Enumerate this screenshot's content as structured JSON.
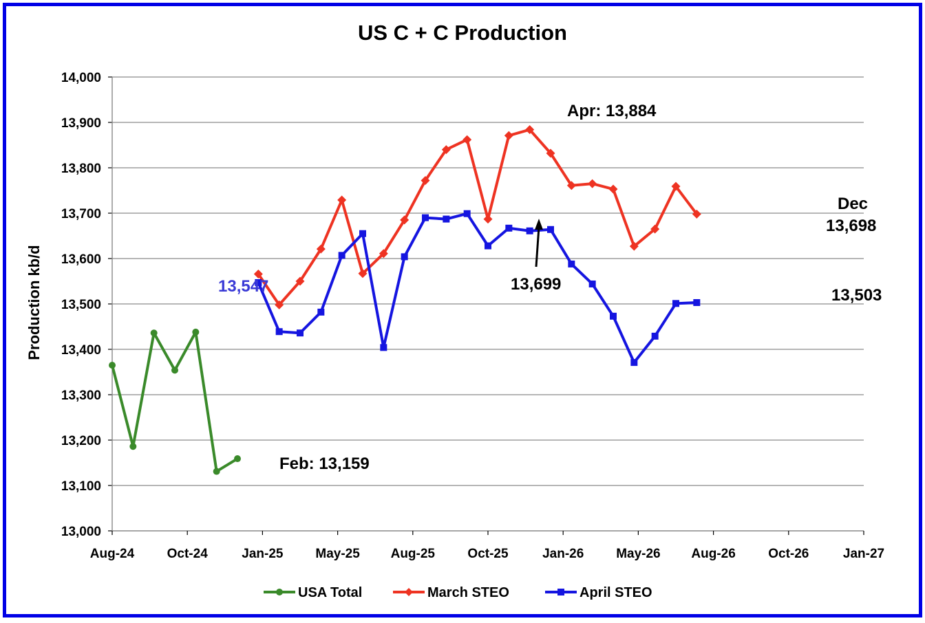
{
  "chart_data": {
    "type": "line",
    "title": "US C + C Production",
    "xlabel": "",
    "ylabel": "Production kb/d",
    "ylim": [
      13000,
      14000
    ],
    "y_ticks": [
      "13,000",
      "13,100",
      "13,200",
      "13,300",
      "13,400",
      "13,500",
      "13,600",
      "13,700",
      "13,800",
      "13,900",
      "14,000"
    ],
    "x_ticks": [
      "Aug-24",
      "Oct-24",
      "Jan-25",
      "May-25",
      "Aug-25",
      "Oct-25",
      "Jan-26",
      "May-26",
      "Aug-26",
      "Oct-26",
      "Jan-27"
    ],
    "grid": "horizontal",
    "legend_position": "bottom",
    "series": [
      {
        "name": "USA Total",
        "color": "#3a8a2a",
        "marker": "circle",
        "x": [
          "2024-08",
          "2024-09",
          "2024-10",
          "2024-11",
          "2024-12",
          "2025-01",
          "2025-02"
        ],
        "values": [
          13365,
          13186,
          13436,
          13354,
          13438,
          13131,
          13159
        ]
      },
      {
        "name": "March STEO",
        "color": "#ee3322",
        "marker": "diamond",
        "x": [
          "2025-03",
          "2025-04",
          "2025-05",
          "2025-06",
          "2025-07",
          "2025-08",
          "2025-09",
          "2025-10",
          "2025-11",
          "2025-12",
          "2026-01",
          "2026-02",
          "2026-03",
          "2026-04",
          "2026-05",
          "2026-06",
          "2026-07",
          "2026-08",
          "2026-09",
          "2026-10",
          "2026-11",
          "2026-12"
        ],
        "values": [
          13566,
          13498,
          13550,
          13621,
          13729,
          13567,
          13611,
          13685,
          13772,
          13840,
          13862,
          13687,
          13871,
          13884,
          13832,
          13761,
          13765,
          13753,
          13627,
          13665,
          13759,
          13698
        ]
      },
      {
        "name": "April STEO",
        "color": "#1515e0",
        "marker": "square",
        "x": [
          "2025-03",
          "2025-04",
          "2025-05",
          "2025-06",
          "2025-07",
          "2025-08",
          "2025-09",
          "2025-10",
          "2025-11",
          "2025-12",
          "2026-01",
          "2026-02",
          "2026-03",
          "2026-04",
          "2026-05",
          "2026-06",
          "2026-07",
          "2026-08",
          "2026-09",
          "2026-10",
          "2026-11",
          "2026-12"
        ],
        "values": [
          13547,
          13439,
          13436,
          13482,
          13607,
          13655,
          13404,
          13604,
          13690,
          13687,
          13699,
          13628,
          13667,
          13661,
          13664,
          13588,
          13544,
          13473,
          13371,
          13429,
          13501,
          13503
        ]
      }
    ],
    "annotations": [
      {
        "text": "Apr: 13,884",
        "color": "#000000"
      },
      {
        "text": "Dec",
        "color": "#000000"
      },
      {
        "text": "13,698",
        "color": "#000000"
      },
      {
        "text": "13,699",
        "color": "#000000"
      },
      {
        "text": "13,547",
        "color": "#3a3ad6"
      },
      {
        "text": "13,503",
        "color": "#000000"
      },
      {
        "text": "Feb: 13,159",
        "color": "#000000"
      }
    ]
  }
}
